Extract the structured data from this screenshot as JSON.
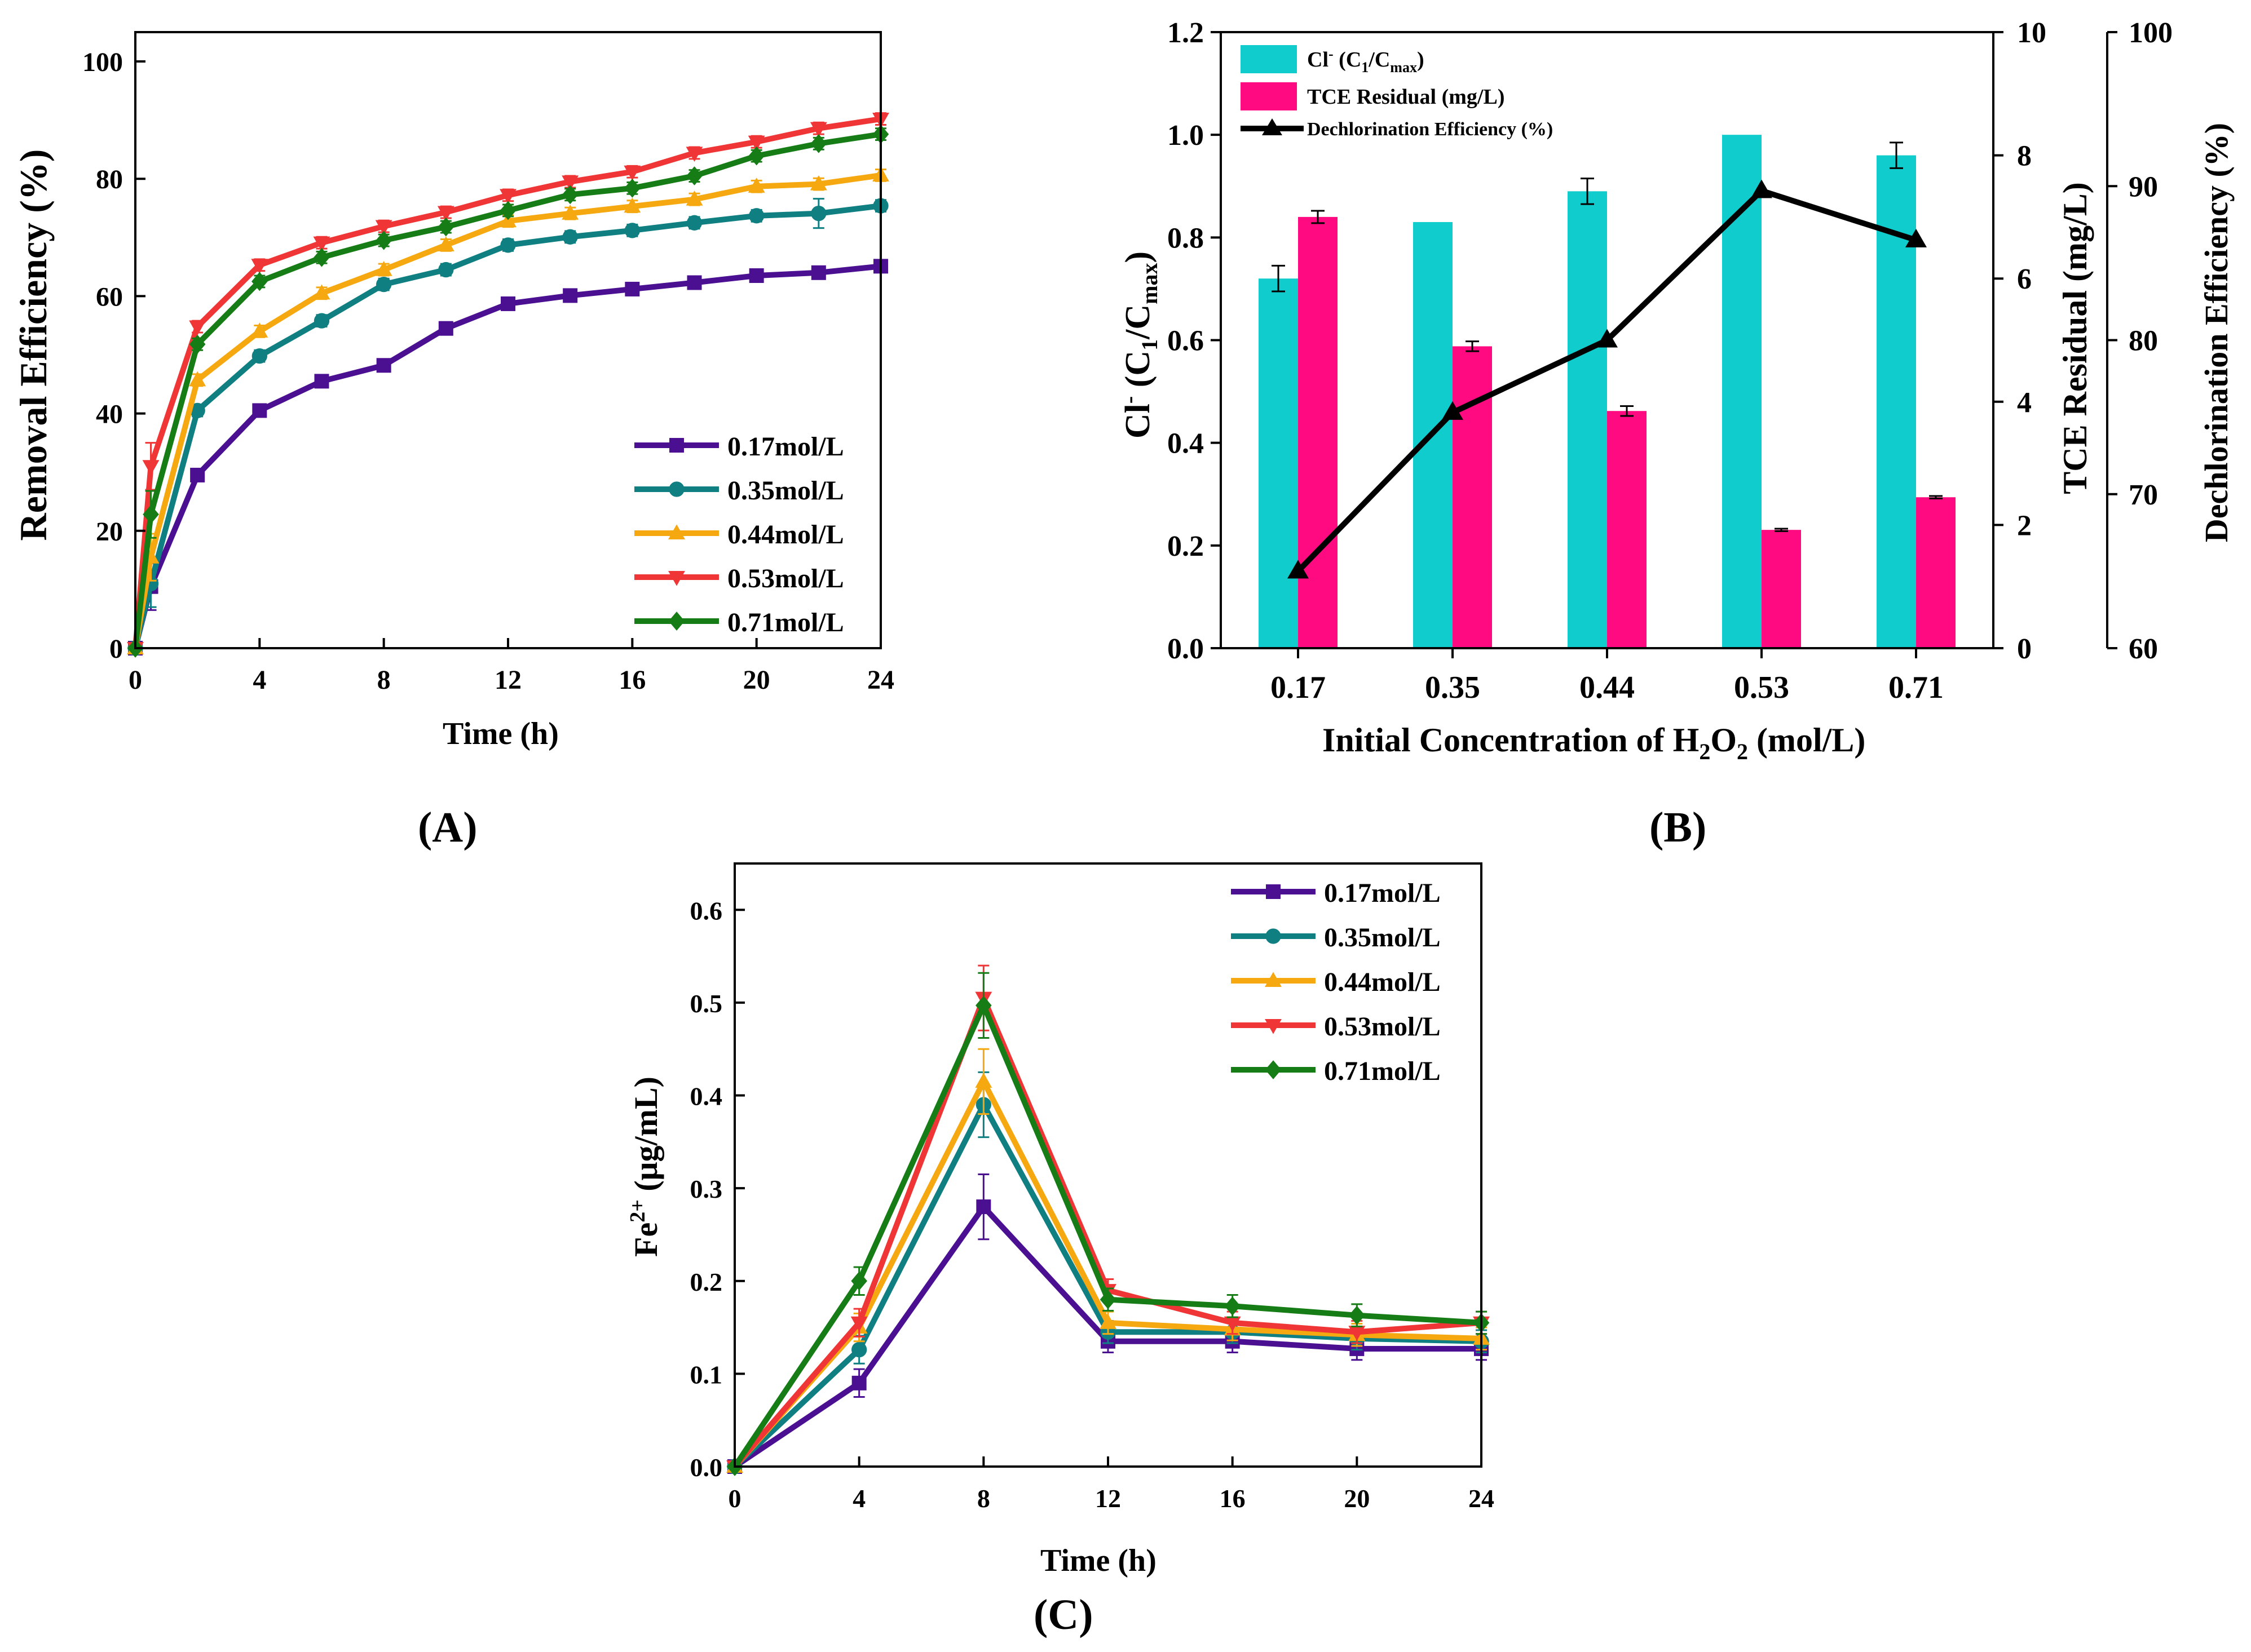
{
  "figure": {
    "label_A": "(A)",
    "label_B": "(B)",
    "label_C": "(C)"
  },
  "series_names": [
    "0.17mol/L",
    "0.35mol/L",
    "0.44mol/L",
    "0.53mol/L",
    "0.71mol/L"
  ],
  "series_colors": [
    "#4b0f91",
    "#0f7f82",
    "#f5a80f",
    "#ef3535",
    "#167d16"
  ],
  "series_markers": [
    "square",
    "circle",
    "triangle-up",
    "triangle-down",
    "diamond"
  ],
  "bar_colors": {
    "cl": "#11cccc",
    "tce": "#ff0a80",
    "line": "#000000"
  },
  "chart_data": [
    {
      "id": "A",
      "type": "line",
      "xlabel": "Time (h)",
      "ylabel": "Removal Efficiency (%)",
      "xlim": [
        0,
        24
      ],
      "ylim": [
        0,
        105
      ],
      "xticks": [
        0,
        4,
        8,
        12,
        16,
        20,
        24
      ],
      "yticks": [
        0,
        20,
        40,
        60,
        80,
        100
      ],
      "legend_position": "bottom-right",
      "x": [
        0,
        0.5,
        2,
        4,
        6,
        8,
        10,
        12,
        14,
        16,
        18,
        20,
        22,
        24
      ],
      "series": [
        {
          "name": "0.17mol/L",
          "values": [
            0,
            10.5,
            29.5,
            40.5,
            45.5,
            48.2,
            54.5,
            58.7,
            60.1,
            61.2,
            62.3,
            63.5,
            64,
            65.1
          ]
        },
        {
          "name": "0.35mol/L",
          "values": [
            0,
            11,
            40.5,
            49.8,
            55.8,
            62,
            64.5,
            68.7,
            70.1,
            71.2,
            72.5,
            73.7,
            74.1,
            75.4
          ]
        },
        {
          "name": "0.44mol/L",
          "values": [
            0,
            15.5,
            45.7,
            54,
            60.5,
            64.5,
            68.7,
            72.8,
            74.1,
            75.3,
            76.5,
            78.7,
            79.1,
            80.6
          ]
        },
        {
          "name": "0.53mol/L",
          "values": [
            0,
            31,
            54.8,
            65.3,
            69.1,
            71.9,
            74.3,
            77.2,
            79.5,
            81.2,
            84.4,
            86.3,
            88.6,
            90.2
          ]
        },
        {
          "name": "0.71mol/L",
          "values": [
            0,
            22.8,
            51.8,
            62.5,
            66.6,
            69.5,
            71.8,
            74.6,
            77.3,
            78.4,
            80.5,
            83.9,
            86,
            87.6
          ]
        }
      ]
    },
    {
      "id": "B",
      "type": "bar",
      "xlabel_main": "Initial Concentration of H",
      "xlabel_sub1": "2",
      "xlabel_mid": "O",
      "xlabel_sub2": "2",
      "xlabel_end": " (mol/L)",
      "ylabel_left": "Cl⁻ (C₁/C_max)",
      "ylabel_right1": "TCE Residual (mg/L)",
      "ylabel_right2": "Dechlorination Efficiency (%)",
      "categories": [
        "0.17",
        "0.35",
        "0.44",
        "0.53",
        "0.71"
      ],
      "ylim_left": [
        0,
        1.2
      ],
      "yticks_left": [
        "0.0",
        "0.2",
        "0.4",
        "0.6",
        "0.8",
        "1.0",
        "1.2"
      ],
      "ylim_right1": [
        0,
        10
      ],
      "yticks_right1": [
        0,
        2,
        4,
        6,
        8,
        10
      ],
      "ylim_right2": [
        60,
        100
      ],
      "yticks_right2": [
        60,
        70,
        80,
        90,
        100
      ],
      "legend_position": "top-left",
      "legend_cl_main": "Cl",
      "legend_cl_sup": "-",
      "legend_cl_rest": " (C",
      "legend_cl_sub1": "1",
      "legend_cl_mid": "/C",
      "legend_cl_sub2": "max",
      "legend_cl_end": ")",
      "legend_tce": "TCE Residual (mg/L)",
      "legend_dechl": "Dechlorination Efficiency (%)",
      "series": [
        {
          "name": "Cl⁻ (C₁/C_max)",
          "axis": "left",
          "values": [
            0.72,
            0.83,
            0.89,
            1.0,
            0.96
          ],
          "errors": [
            0.025,
            0,
            0.025,
            0,
            0.025
          ]
        },
        {
          "name": "TCE Residual (mg/L)",
          "axis": "right1",
          "values": [
            7.0,
            4.9,
            3.85,
            1.92,
            2.45
          ],
          "errors": [
            0.1,
            0.08,
            0.08,
            0.02,
            0.02
          ]
        },
        {
          "name": "Dechlorination Efficiency (%)",
          "axis": "right2",
          "type": "line",
          "values": [
            65,
            75.3,
            80,
            89.7,
            86.5
          ]
        }
      ]
    },
    {
      "id": "C",
      "type": "line",
      "xlabel": "Time (h)",
      "ylabel_main": "Fe",
      "ylabel_sup": "2+",
      "ylabel_rest": " (μg/mL)",
      "xlim": [
        0,
        24
      ],
      "ylim": [
        0,
        0.65
      ],
      "xticks": [
        0,
        4,
        8,
        12,
        16,
        20,
        24
      ],
      "yticks": [
        "0.0",
        "0.1",
        "0.2",
        "0.3",
        "0.4",
        "0.5",
        "0.6"
      ],
      "legend_position": "top-right",
      "x": [
        0,
        4,
        8,
        12,
        16,
        20,
        24
      ],
      "series": [
        {
          "name": "0.17mol/L",
          "values": [
            0,
            0.09,
            0.28,
            0.135,
            0.135,
            0.127,
            0.127
          ]
        },
        {
          "name": "0.35mol/L",
          "values": [
            0,
            0.126,
            0.39,
            0.145,
            0.145,
            0.138,
            0.135
          ]
        },
        {
          "name": "0.44mol/L",
          "values": [
            0,
            0.15,
            0.415,
            0.155,
            0.148,
            0.142,
            0.138
          ]
        },
        {
          "name": "0.53mol/L",
          "values": [
            0,
            0.155,
            0.505,
            0.19,
            0.155,
            0.145,
            0.155
          ]
        },
        {
          "name": "0.71mol/L",
          "values": [
            0,
            0.2,
            0.497,
            0.18,
            0.173,
            0.163,
            0.155
          ]
        }
      ]
    }
  ]
}
